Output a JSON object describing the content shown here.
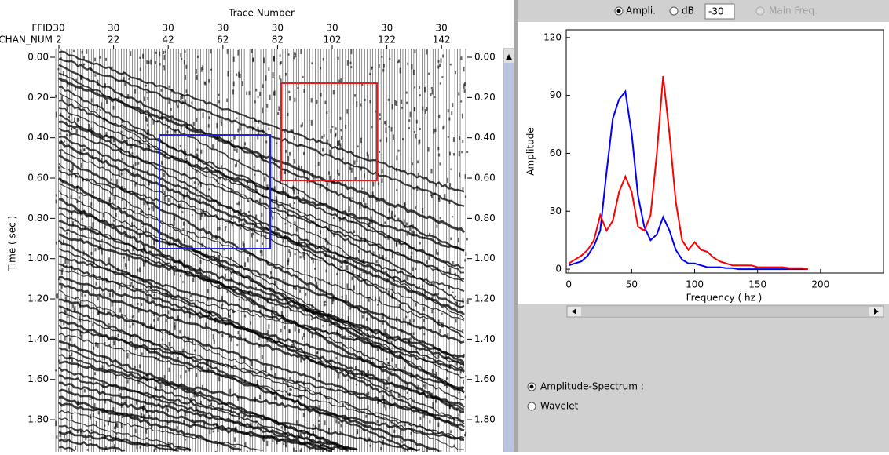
{
  "section": {
    "title": "Trace Number",
    "header_rows": [
      "FFID",
      "CHAN_NUM"
    ],
    "ffid": [
      30,
      30,
      30,
      30,
      30,
      30,
      30,
      30
    ],
    "chan_num": [
      2,
      22,
      42,
      62,
      82,
      102,
      122,
      142
    ],
    "y_label": "Time ( sec )",
    "time_ticks": [
      {
        "value": 0,
        "label": "0.00"
      },
      {
        "value": 0.2,
        "label": "0.20"
      },
      {
        "value": 0.4,
        "label": "0.40"
      },
      {
        "value": 0.6,
        "label": "0.60"
      },
      {
        "value": 0.8,
        "label": "0.80"
      },
      {
        "value": 1.0,
        "label": "1.00"
      },
      {
        "value": 1.2,
        "label": "1.20"
      },
      {
        "value": 1.4,
        "label": "1.40"
      },
      {
        "value": 1.6,
        "label": "1.60"
      },
      {
        "value": 1.8,
        "label": "1.80"
      }
    ]
  },
  "controls": {
    "ampli": "Ampli.",
    "db": "dB",
    "db_value": "-30",
    "main_freq": "Main Freq.",
    "amplitude_spectrum": "Amplitude-Spectrum :",
    "wavelet": "Wavelet"
  },
  "chart_data": {
    "type": "line",
    "x_label": "Frequency ( hz )",
    "y_label": "Amplitude",
    "x": [
      0,
      5,
      10,
      15,
      20,
      25,
      30,
      35,
      40,
      45,
      50,
      55,
      60,
      65,
      70,
      75,
      80,
      85,
      90,
      95,
      100,
      105,
      110,
      115,
      120,
      125,
      130,
      135,
      140,
      145,
      150,
      155,
      160,
      165,
      170,
      175,
      180,
      185,
      190
    ],
    "series": [
      {
        "color": "#0000ff",
        "values": [
          2,
          3,
          4,
          7,
          12,
          20,
          50,
          78,
          88,
          92,
          70,
          38,
          22,
          15,
          18,
          27,
          20,
          10,
          5,
          3,
          3,
          2,
          1,
          1,
          1,
          0.5,
          0.5,
          0,
          0,
          0,
          0,
          0,
          0,
          0,
          0,
          0,
          0,
          0,
          0
        ]
      },
      {
        "color": "#ff0000",
        "values": [
          3,
          5,
          7,
          10,
          15,
          28,
          20,
          25,
          40,
          48,
          40,
          22,
          20,
          28,
          60,
          100,
          70,
          35,
          15,
          10,
          14,
          10,
          9,
          6,
          4,
          3,
          2,
          2,
          2,
          2,
          1,
          1,
          1,
          1,
          1,
          0.5,
          0.5,
          0.5,
          0
        ]
      }
    ],
    "xlim": [
      -2,
      250
    ],
    "ylim": [
      -2,
      124
    ],
    "xticks": [
      0,
      50,
      100,
      150,
      200
    ],
    "yticks": [
      0,
      30,
      60,
      90,
      120
    ]
  }
}
